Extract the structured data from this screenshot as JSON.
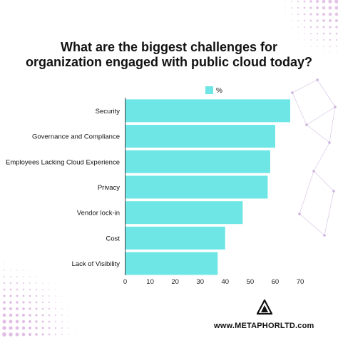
{
  "chart_data": {
    "type": "bar",
    "orientation": "horizontal",
    "title_lines": [
      "What are the biggest challenges for",
      "organization engaged with public cloud today?"
    ],
    "categories": [
      "Security",
      "Governance and Compliance",
      "Employees Lacking Cloud Experience",
      "Privacy",
      "Vendor lock-in",
      "Cost",
      "Lack of Visibility"
    ],
    "series": [
      {
        "name": "%",
        "values": [
          66,
          60,
          58,
          57,
          47,
          40,
          37
        ]
      }
    ],
    "xlim": [
      0,
      70
    ],
    "xticks": [
      0,
      10,
      20,
      30,
      40,
      50,
      60,
      70
    ],
    "legend_position": "top",
    "bar_color": "#6fe6e6",
    "grid": false
  },
  "footer": {
    "website": "www.METAPHORLTD.com"
  },
  "colors": {
    "accent": "#6fe6e6",
    "decor": "#c98bd0",
    "text": "#111111"
  }
}
